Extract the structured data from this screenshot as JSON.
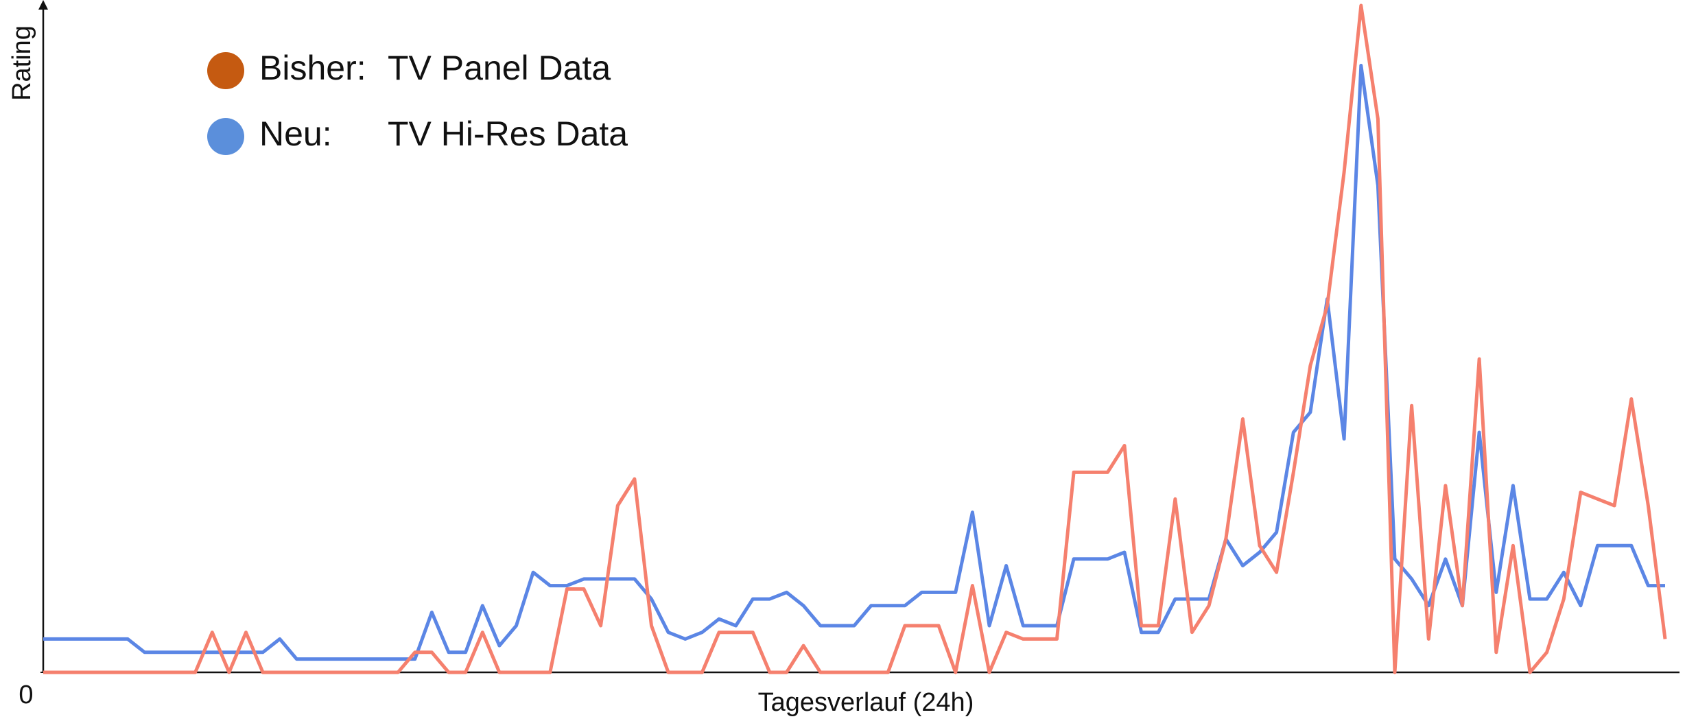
{
  "chart_data": {
    "type": "line",
    "y_label": "Rating",
    "x_label": "Tagesverlauf (24h)",
    "xlim": [
      0,
      24
    ],
    "ylim": [
      0,
      100
    ],
    "yticks": [
      0
    ],
    "grid": false,
    "legend": "top-left",
    "x": [
      0,
      0.25,
      0.5,
      0.75,
      1,
      1.25,
      1.5,
      1.75,
      2,
      2.25,
      2.5,
      2.75,
      3,
      3.25,
      3.5,
      3.75,
      4,
      4.25,
      4.5,
      4.75,
      5,
      5.25,
      5.5,
      5.75,
      6,
      6.25,
      6.5,
      6.75,
      7,
      7.25,
      7.5,
      7.75,
      8,
      8.25,
      8.5,
      8.75,
      9,
      9.25,
      9.5,
      9.75,
      10,
      10.25,
      10.5,
      10.75,
      11,
      11.25,
      11.5,
      11.75,
      12,
      12.25,
      12.5,
      12.75,
      13,
      13.25,
      13.5,
      13.75,
      14,
      14.25,
      14.5,
      14.75,
      15,
      15.25,
      15.5,
      15.75,
      16,
      16.25,
      16.5,
      16.75,
      17,
      17.25,
      17.5,
      17.75,
      18,
      18.25,
      18.5,
      18.75,
      19,
      19.25,
      19.5,
      19.75,
      20,
      20.25,
      20.5,
      20.75,
      21,
      21.25,
      21.5,
      21.75,
      22,
      22.25,
      22.5,
      22.75,
      23,
      23.25,
      23.5,
      23.75,
      24
    ],
    "series": [
      {
        "group": "Neu:",
        "name": "TV Hi-Res Data",
        "color": "#5b86e5",
        "marker_color": "#5b8fdb",
        "values": [
          5,
          5,
          5,
          5,
          5,
          5,
          3,
          3,
          3,
          3,
          3,
          3,
          3,
          3,
          5,
          2,
          2,
          2,
          2,
          2,
          2,
          2,
          2,
          9,
          3,
          3,
          10,
          4,
          7,
          15,
          13,
          13,
          14,
          14,
          14,
          14,
          11,
          6,
          5,
          6,
          8,
          7,
          11,
          11,
          12,
          10,
          7,
          7,
          7,
          10,
          10,
          10,
          12,
          12,
          12,
          24,
          7,
          16,
          7,
          7,
          7,
          17,
          17,
          17,
          18,
          6,
          6,
          11,
          11,
          11,
          20,
          16,
          18,
          21,
          36,
          39,
          56,
          35,
          91,
          73,
          17,
          14,
          10,
          17,
          10,
          36,
          12,
          28,
          11,
          11,
          15,
          10,
          19,
          19,
          19,
          13,
          13
        ]
      },
      {
        "group": "Bisher:",
        "name": "TV Panel Data",
        "color": "#f5806e",
        "marker_color": "#c55a11",
        "values": [
          0,
          0,
          0,
          0,
          0,
          0,
          0,
          0,
          0,
          0,
          6,
          0,
          6,
          0,
          0,
          0,
          0,
          0,
          0,
          0,
          0,
          0,
          3,
          3,
          0,
          0,
          6,
          0,
          0,
          0,
          0,
          12.5,
          12.5,
          7,
          25,
          29,
          7,
          0,
          0,
          0,
          6,
          6,
          6,
          0,
          0,
          4,
          0,
          0,
          0,
          0,
          0,
          7,
          7,
          7,
          0,
          13,
          0,
          6,
          5,
          5,
          5,
          30,
          30,
          30,
          34,
          7,
          7,
          26,
          6,
          10,
          20,
          38,
          19,
          15,
          30,
          46,
          55,
          75,
          100,
          83,
          0,
          40,
          5,
          28,
          10,
          47,
          3,
          19,
          0,
          3,
          11,
          27,
          26,
          25,
          41,
          25,
          5
        ]
      }
    ]
  }
}
